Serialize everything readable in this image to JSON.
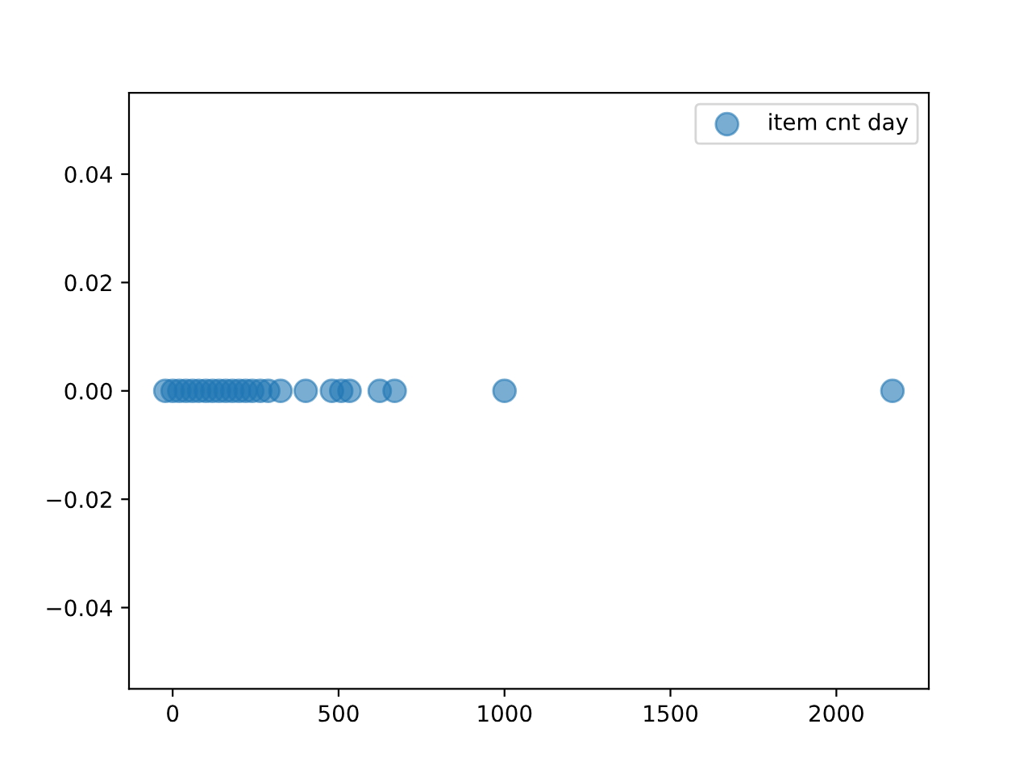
{
  "chart_data": {
    "type": "scatter",
    "xlim": [
      -131.55,
      2278.55
    ],
    "ylim": [
      -0.055,
      0.055
    ],
    "xticks": [
      0,
      500,
      1000,
      1500,
      2000
    ],
    "yticks": [
      {
        "value": -0.04,
        "label": "−0.04"
      },
      {
        "value": -0.02,
        "label": "−0.02"
      },
      {
        "value": 0,
        "label": "0.00"
      },
      {
        "value": 0.02,
        "label": "0.02"
      },
      {
        "value": 0.04,
        "label": "0.04"
      }
    ],
    "grid": false,
    "legend": "top right",
    "marker": "circle",
    "series": [
      {
        "name": "item cnt day",
        "color": "#1f77b4",
        "x": [
          -22,
          0,
          20,
          40,
          60,
          80,
          100,
          120,
          140,
          160,
          180,
          200,
          220,
          240,
          264,
          288,
          325,
          401,
          480,
          508,
          533,
          624,
          669,
          1000,
          2169
        ],
        "values": [
          0,
          0,
          0,
          0,
          0,
          0,
          0,
          0,
          0,
          0,
          0,
          0,
          0,
          0,
          0,
          0,
          0,
          0,
          0,
          0,
          0,
          0,
          0,
          0,
          0
        ]
      }
    ]
  }
}
